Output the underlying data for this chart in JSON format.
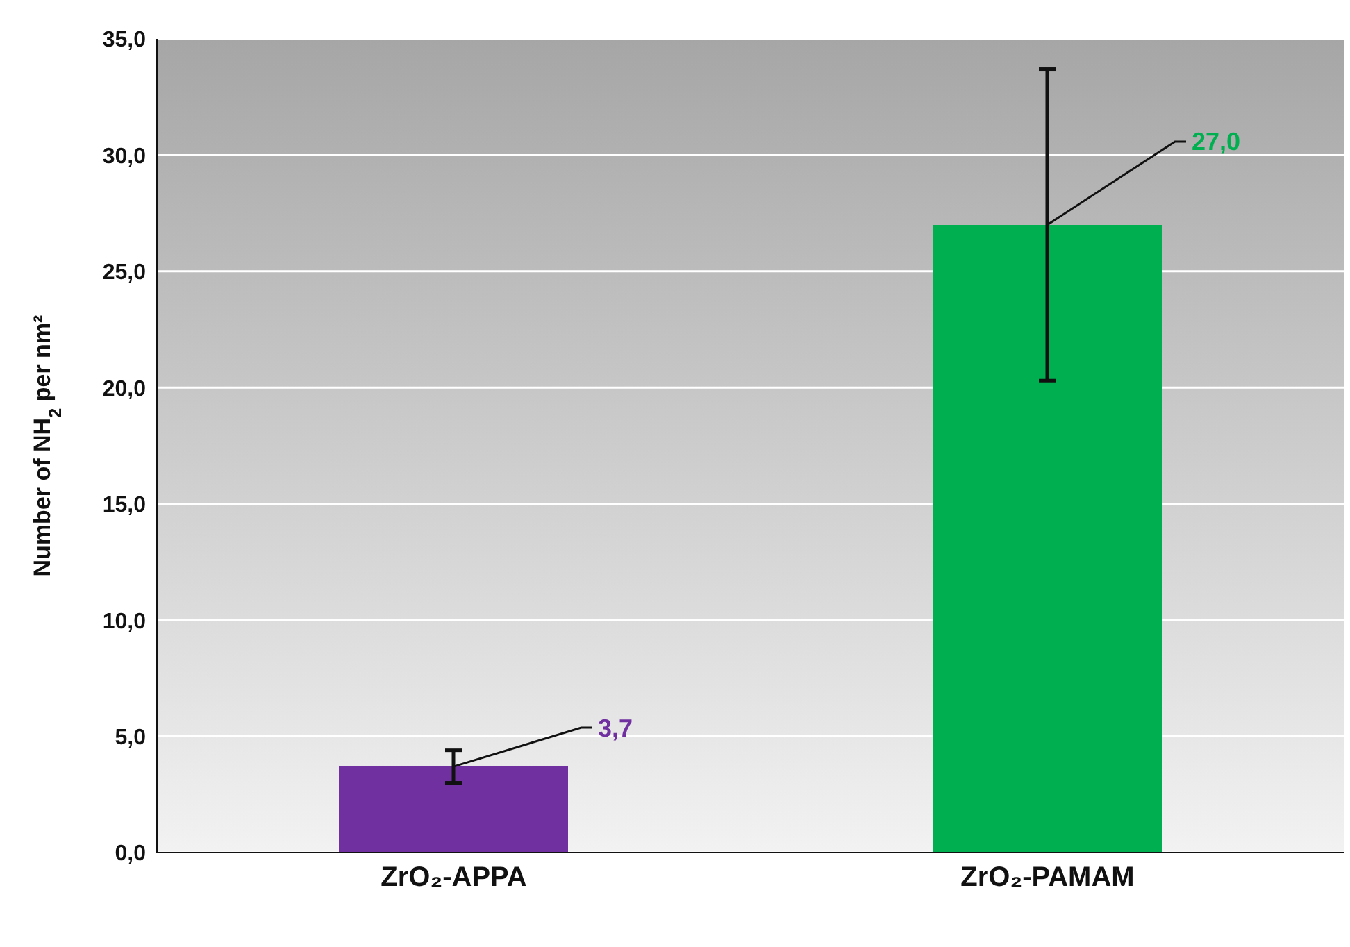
{
  "chart_data": {
    "type": "bar",
    "ylabel": "Number of NH$_{2}$ per nm²",
    "categories": [
      "ZrO₂-APPA",
      "ZrO₂-PAMAM"
    ],
    "values": [
      3.7,
      27.0
    ],
    "colors": [
      "#7030a0",
      "#00b050"
    ],
    "errors": [
      0.7,
      6.7
    ],
    "value_labels": [
      "3,7",
      "27,0"
    ],
    "ylim": [
      0,
      35
    ],
    "yticks": [
      {
        "value": 0,
        "label": "0,0"
      },
      {
        "value": 5,
        "label": "5,0"
      },
      {
        "value": 10,
        "label": "10,0"
      },
      {
        "value": 15,
        "label": "15,0"
      },
      {
        "value": 20,
        "label": "20,0"
      },
      {
        "value": 25,
        "label": "25,0"
      },
      {
        "value": 30,
        "label": "30,0"
      },
      {
        "value": 35,
        "label": "35,0"
      }
    ],
    "grid": "y"
  }
}
